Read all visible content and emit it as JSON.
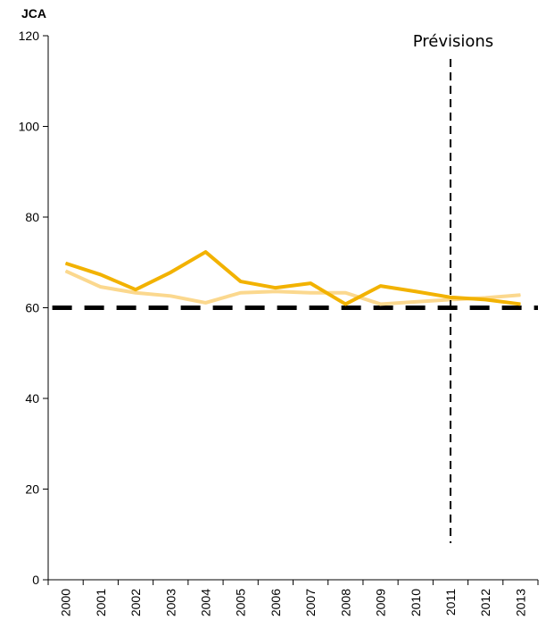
{
  "chart_data": {
    "type": "line",
    "ylabel": "JCA",
    "xlabel": "",
    "ylim": [
      0,
      120
    ],
    "yticks": [
      "0",
      "20",
      "40",
      "60",
      "80",
      "100",
      "120"
    ],
    "categories": [
      "2000",
      "2001",
      "2002",
      "2003",
      "2004",
      "2005",
      "2006",
      "2007",
      "2008",
      "2009",
      "2010",
      "2011",
      "2012",
      "2013"
    ],
    "series": [
      {
        "values": [
          69.8,
          67.3,
          64.0,
          67.8,
          72.3,
          65.8,
          64.4,
          65.4,
          60.8,
          64.8,
          63.6,
          62.3,
          61.8,
          60.8
        ],
        "color": "#f2b200"
      },
      {
        "values": [
          68.1,
          64.6,
          63.3,
          62.6,
          61.1,
          63.3,
          63.6,
          63.3,
          63.3,
          60.8,
          61.3,
          61.8,
          62.2,
          62.8
        ],
        "color": "#fbd88e"
      }
    ],
    "reference_line": {
      "value": 60,
      "style": "dashed",
      "color": "#000000"
    },
    "forecast_marker": {
      "position": "2011",
      "label": "Prévisions"
    },
    "grid": false,
    "legend": "none"
  }
}
